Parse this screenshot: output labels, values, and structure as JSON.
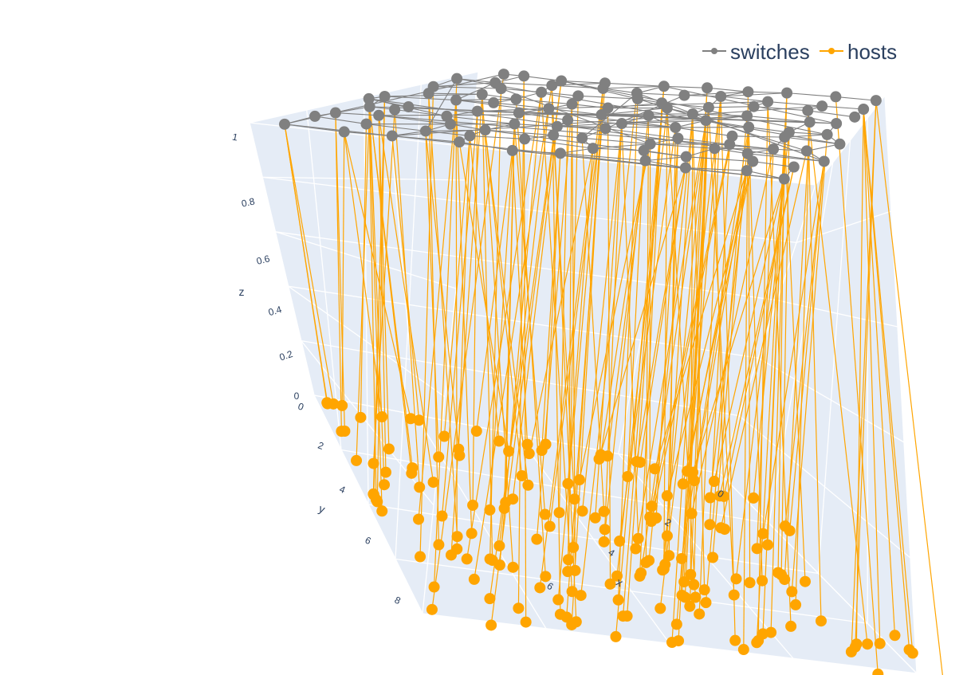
{
  "chart_data": {
    "type": "scatter3d",
    "legend": {
      "placement": "top-right",
      "items": [
        {
          "name": "switches",
          "color": "#808080"
        },
        {
          "name": "hosts",
          "color": "#ffa500"
        }
      ]
    },
    "axes": {
      "x": {
        "label": "x",
        "range": [
          0,
          8
        ],
        "ticks": [
          "0",
          "2",
          "4",
          "6"
        ]
      },
      "y": {
        "label": "y",
        "range": [
          0,
          8
        ],
        "ticks": [
          "0",
          "2",
          "4",
          "6",
          "8"
        ]
      },
      "z": {
        "label": "z",
        "range": [
          0,
          1
        ],
        "ticks": [
          "0",
          "0.2",
          "0.4",
          "0.6",
          "0.8",
          "1"
        ]
      }
    },
    "grid": true,
    "series": [
      {
        "name": "switches",
        "color": "#808080",
        "z": 1,
        "count": 100,
        "marker_size": 7
      },
      {
        "name": "hosts",
        "color": "#ffa500",
        "z": 0,
        "count": 180,
        "marker_size": 7
      }
    ]
  }
}
